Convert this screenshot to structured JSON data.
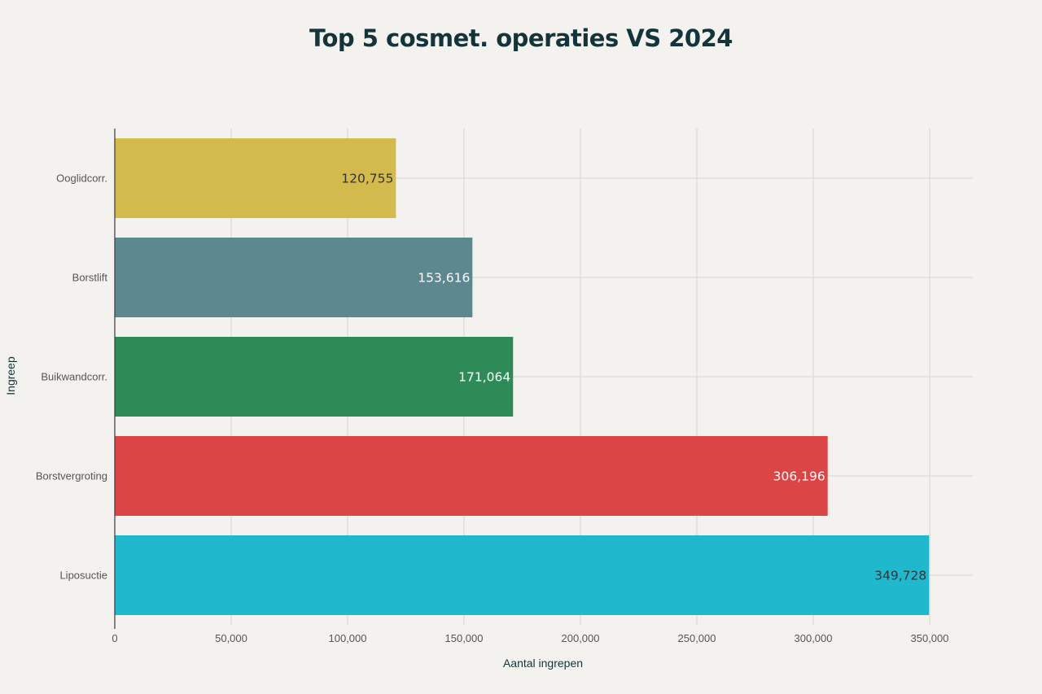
{
  "chart_data": {
    "type": "bar",
    "orientation": "horizontal",
    "title": "Top 5 cosmet. operaties VS 2024",
    "xlabel": "Aantal ingrepen",
    "ylabel": "Ingreep",
    "xlim": [
      0,
      350000
    ],
    "x_ticks": [
      0,
      50000,
      100000,
      150000,
      200000,
      250000,
      300000,
      350000
    ],
    "x_tick_labels": [
      "0",
      "50,000",
      "100,000",
      "150,000",
      "200,000",
      "250,000",
      "300,000",
      "350,000"
    ],
    "grid": true,
    "legend": "none",
    "categories": [
      "Ooglidcorr.",
      "Borstlift",
      "Buikwandcorr.",
      "Borstvergroting",
      "Liposuctie"
    ],
    "values": [
      120755,
      153616,
      171064,
      306196,
      349728
    ],
    "value_labels": [
      "120,755",
      "153,616",
      "171,064",
      "306,196",
      "349,728"
    ],
    "colors": [
      "#d2ba4c",
      "#5e8890",
      "#2e8b57",
      "#db4545",
      "#1fb8cd"
    ],
    "label_colors": [
      "#333333",
      "#ffffff",
      "#ffffff",
      "#ffffff",
      "#333333"
    ]
  }
}
